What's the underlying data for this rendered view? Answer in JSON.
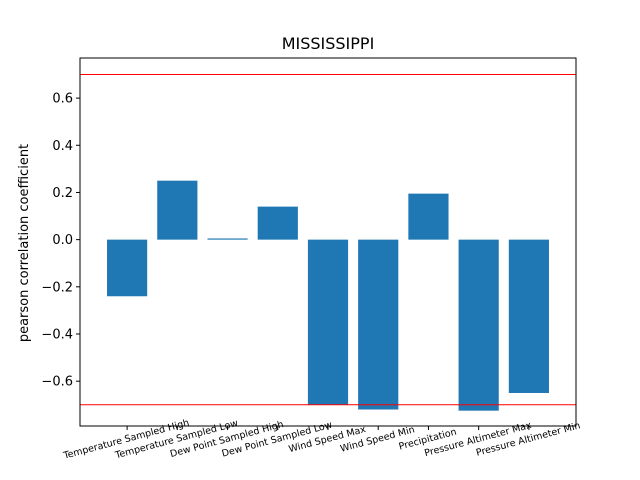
{
  "chart_data": {
    "type": "bar",
    "title": "MISSISSIPPI",
    "xlabel": "",
    "ylabel": "pearson correlation coefficient",
    "categories": [
      "Temperature Sampled High",
      "Temperature Sampled Low",
      "Dew Point Sampled High",
      "Dew Point Sampled Low",
      "Wind Speed Max",
      "Wind Speed Min",
      "Precipitation",
      "Pressure Altimeter Max",
      "Pressure Altimeter Min"
    ],
    "values": [
      -0.24,
      0.25,
      0.005,
      0.14,
      -0.7,
      -0.72,
      0.195,
      -0.725,
      -0.65
    ],
    "ylim": [
      -0.79,
      0.77
    ],
    "yticks": [
      0.6,
      0.4,
      0.2,
      0.0,
      -0.2,
      -0.4,
      -0.6
    ],
    "ytick_labels": [
      "0.6",
      "0.4",
      "0.2",
      "0.0",
      "−0.2",
      "−0.4",
      "−0.6"
    ],
    "reference_lines": [
      0.7,
      -0.7
    ],
    "colors": {
      "bar": "#1f77b4",
      "reference_line": "#ff0000"
    },
    "grid": false,
    "legend": "none"
  }
}
